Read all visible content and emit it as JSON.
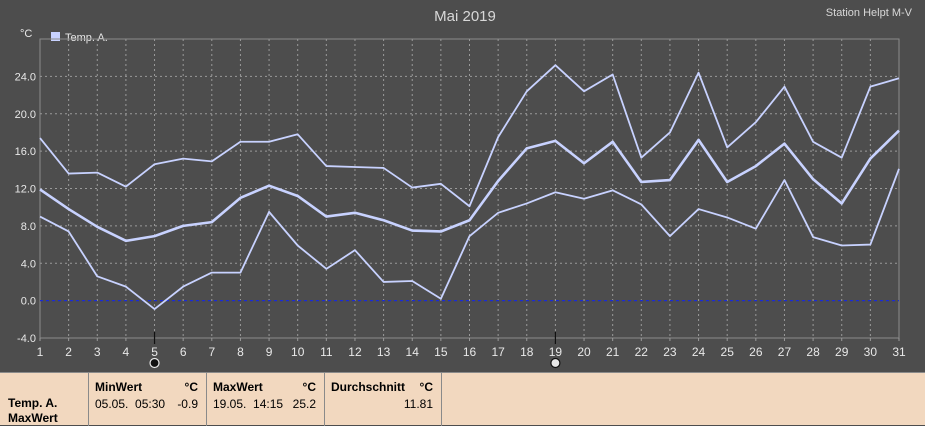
{
  "chart_data": {
    "type": "line",
    "title": "Mai 2019",
    "station": "Station Helpt M-V",
    "ylabel": "°C",
    "ylim": [
      -4.0,
      28.0
    ],
    "yticks": [
      -4.0,
      0.0,
      4.0,
      8.0,
      12.0,
      16.0,
      20.0,
      24.0
    ],
    "ytick_labels": [
      "-4.0",
      "0.0",
      "4.0",
      "8.0",
      "12.0",
      "16.0",
      "20.0",
      "24.0"
    ],
    "xlim": [
      1,
      31
    ],
    "x": [
      1,
      2,
      3,
      4,
      5,
      6,
      7,
      8,
      9,
      10,
      11,
      12,
      13,
      14,
      15,
      16,
      17,
      18,
      19,
      20,
      21,
      22,
      23,
      24,
      25,
      26,
      27,
      28,
      29,
      30,
      31
    ],
    "grid": true,
    "legend": {
      "position": "top-left",
      "label": "Temp. A.",
      "color": "#c8d2ff"
    },
    "series": [
      {
        "role": "max",
        "values": [
          17.4,
          13.6,
          13.7,
          12.2,
          14.6,
          15.2,
          14.9,
          17.0,
          17.0,
          17.8,
          14.4,
          14.3,
          14.2,
          12.1,
          12.5,
          10.1,
          17.5,
          22.4,
          25.2,
          22.4,
          24.2,
          15.3,
          18.0,
          24.4,
          16.4,
          19.1,
          22.9,
          17.0,
          15.3,
          22.9,
          23.8
        ],
        "width": 1.8
      },
      {
        "role": "avg",
        "values": [
          11.9,
          9.8,
          7.9,
          6.4,
          6.9,
          8.0,
          8.4,
          11.0,
          12.3,
          11.2,
          9.0,
          9.4,
          8.6,
          7.5,
          7.4,
          8.6,
          12.8,
          16.3,
          17.1,
          14.7,
          17.0,
          12.7,
          12.9,
          17.2,
          12.7,
          14.4,
          16.8,
          13.0,
          10.4,
          15.2,
          18.2
        ],
        "width": 2.6
      },
      {
        "role": "min",
        "values": [
          9.0,
          7.4,
          2.6,
          1.5,
          -0.9,
          1.5,
          3.0,
          3.0,
          9.5,
          5.9,
          3.4,
          5.4,
          2.0,
          2.1,
          0.2,
          6.9,
          9.4,
          10.4,
          11.6,
          10.9,
          11.8,
          10.3,
          6.9,
          9.8,
          8.9,
          7.7,
          12.9,
          6.8,
          5.9,
          6.0,
          14.1
        ],
        "width": 1.8
      }
    ],
    "zero_line_color": "#1a2bd6",
    "line_color": "#c8d2ff",
    "markers": [
      {
        "x": 5,
        "type": "min"
      },
      {
        "x": 19,
        "type": "max"
      }
    ]
  },
  "stats": {
    "row_label_1": "Temp. A.",
    "row_label_2": "MaxWert",
    "min": {
      "header": "MinWert",
      "unit": "°C",
      "datetime": "05.05.  05:30",
      "value": "-0.9"
    },
    "max": {
      "header": "MaxWert",
      "unit": "°C",
      "datetime": "19.05.  14:15",
      "value": "25.2"
    },
    "avg": {
      "header": "Durchschnitt",
      "unit": "°C",
      "value": "11.81"
    }
  }
}
